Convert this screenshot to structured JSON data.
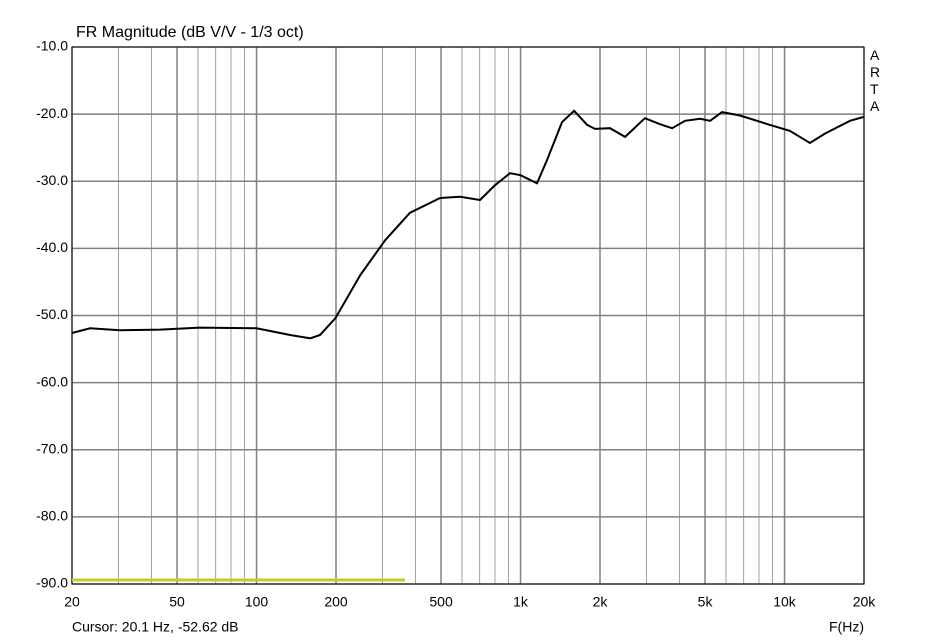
{
  "chart_data": {
    "type": "line",
    "title": "FR Magnitude (dB V/V - 1/3 oct)",
    "watermark": "ARTA",
    "cursor_text": "Cursor: 20.1 Hz, -52.62 dB",
    "xlabel": "F(Hz)",
    "xscale": "log",
    "grid": true,
    "xlim": [
      20,
      20000
    ],
    "ylim": [
      -90,
      -10
    ],
    "xticks": [
      20,
      50,
      100,
      200,
      500,
      {
        "value": 1000,
        "label": "1k"
      },
      {
        "value": 2000,
        "label": "2k"
      },
      {
        "value": 5000,
        "label": "5k"
      },
      {
        "value": 10000,
        "label": "10k"
      },
      {
        "value": 20000,
        "label": "20k"
      }
    ],
    "xminor": [
      30,
      40,
      60,
      70,
      80,
      90,
      300,
      400,
      600,
      700,
      800,
      900,
      3000,
      4000,
      6000,
      7000,
      8000,
      9000
    ],
    "yticks": [
      {
        "value": -10,
        "label": "-10.0"
      },
      {
        "value": -20,
        "label": "-20.0"
      },
      {
        "value": -30,
        "label": "-30.0"
      },
      {
        "value": -40,
        "label": "-40.0"
      },
      {
        "value": -50,
        "label": "-50.0"
      },
      {
        "value": -60,
        "label": "-60.0"
      },
      {
        "value": -70,
        "label": "-70.0"
      },
      {
        "value": -80,
        "label": "-80.0"
      },
      {
        "value": -90,
        "label": "-90.0"
      }
    ],
    "series": [
      {
        "color": "#000000",
        "x": [
          20,
          23.4,
          30.4,
          43.1,
          61.1,
          100,
          134,
          160,
          174,
          199,
          247,
          307,
          381,
          496,
          590,
          702,
          800,
          912,
          1000,
          1154,
          1259,
          1436,
          1596,
          1788,
          1914,
          2183,
          2489,
          2960,
          3375,
          3750,
          4200,
          4790,
          5224,
          5796,
          6778,
          8810,
          10490,
          12480,
          14220,
          17700,
          20000
        ],
        "values": [
          -52.6,
          -51.9,
          -52.2,
          -52.1,
          -51.8,
          -51.9,
          -52.9,
          -53.4,
          -52.9,
          -50.4,
          -44.0,
          -38.8,
          -34.7,
          -32.5,
          -32.3,
          -32.8,
          -30.6,
          -28.8,
          -29.1,
          -30.3,
          -26.9,
          -21.2,
          -19.5,
          -21.6,
          -22.2,
          -22.1,
          -23.4,
          -20.6,
          -21.5,
          -22.1,
          -21.0,
          -20.7,
          -21.0,
          -19.7,
          -20.2,
          -21.6,
          -22.5,
          -24.3,
          -22.9,
          -21.0,
          -20.4
        ]
      },
      {
        "color": "#c8c832",
        "x": [
          20,
          365
        ],
        "values": [
          -89.4,
          -89.4
        ]
      }
    ]
  }
}
